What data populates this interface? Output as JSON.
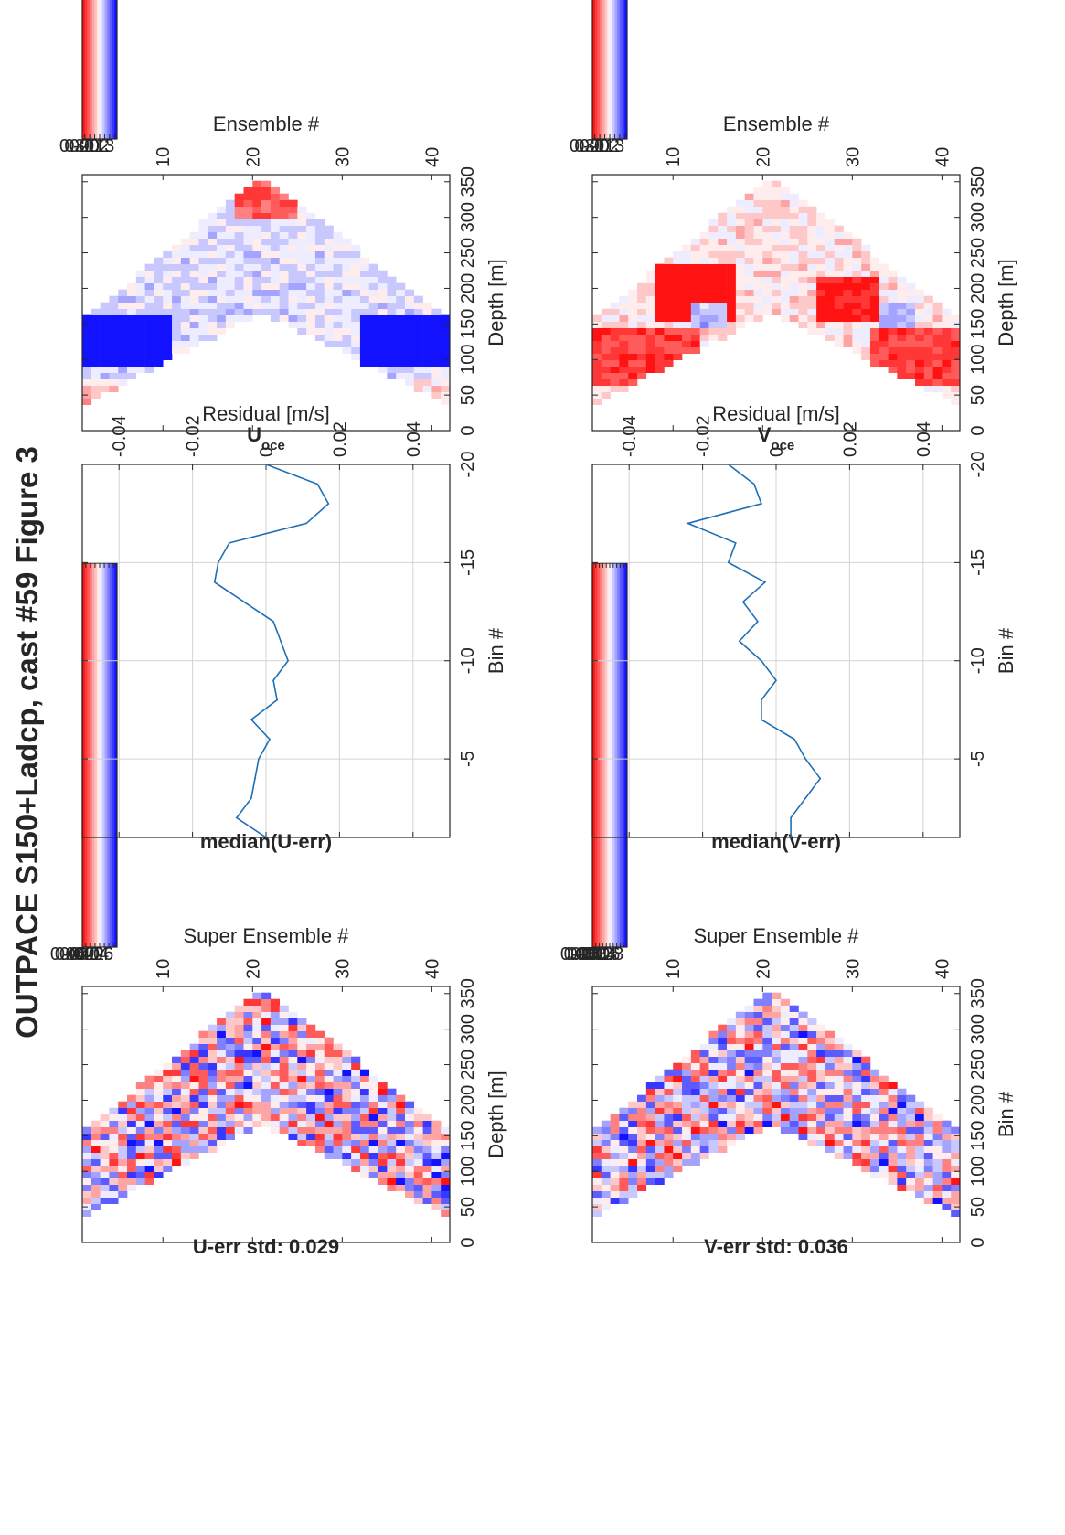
{
  "figure": {
    "title": "OUTPACE S150+Ladcp, cast #59  Figure 3"
  },
  "colors": {
    "positive": "#ff0000",
    "neutral": "#ffffff",
    "negative": "#0000ff",
    "line": "#1f6fb5",
    "frame": "#262626",
    "grid": "#d4d4d4"
  },
  "chart_data": [
    {
      "id": "u-err",
      "type": "heatmap",
      "title": "U-err std: 0.029",
      "xlabel": "Super Ensemble #",
      "ylabel": "Depth [m]",
      "xlim": [
        1,
        42
      ],
      "ylim": [
        0,
        360
      ],
      "x_ticks": [
        10,
        20,
        30,
        40
      ],
      "x_tick_labels": [
        "10",
        "20",
        "30",
        "40"
      ],
      "y_ticks": [
        0,
        50,
        100,
        150,
        200,
        250,
        300,
        350
      ],
      "y_tick_labels": [
        "0",
        "50",
        "100",
        "150",
        "200",
        "250",
        "300",
        "350"
      ],
      "colorbar": {
        "clim": [
          -0.075,
          0.075
        ],
        "ticks": [
          0.06,
          0.04,
          0.02,
          0,
          -0.02,
          -0.04,
          -0.06
        ],
        "tick_labels": [
          "0.06",
          "0.04",
          "0.02",
          "0",
          "-0.02",
          "-0.04",
          "-0.06"
        ]
      }
    },
    {
      "id": "v-err",
      "type": "heatmap",
      "title": "V-err std: 0.036",
      "xlabel": "Super Ensemble #",
      "ylabel": "Bin #",
      "xlim": [
        1,
        42
      ],
      "ylim": [
        0,
        360
      ],
      "x_ticks": [
        10,
        20,
        30,
        40
      ],
      "x_tick_labels": [
        "10",
        "20",
        "30",
        "40"
      ],
      "y_ticks": [
        0,
        50,
        100,
        150,
        200,
        250,
        300,
        350
      ],
      "y_tick_labels": [
        "0",
        "50",
        "100",
        "150",
        "200",
        "250",
        "300",
        "350"
      ],
      "colorbar": {
        "clim": [
          -0.1,
          0.1
        ],
        "ticks": [
          0.08,
          0.06,
          0.04,
          0.02,
          0,
          -0.02,
          -0.04,
          -0.06,
          -0.08
        ],
        "tick_labels": [
          "0.08",
          "0.06",
          "0.04",
          "0.02",
          "0",
          "-0.02",
          "-0.04",
          "-0.06",
          "-0.08"
        ]
      }
    },
    {
      "id": "median-u",
      "type": "line",
      "title": "median(U-err)",
      "xlabel": "Residual [m/s]",
      "ylabel": "Bin #",
      "xlim": [
        -0.05,
        0.05
      ],
      "ylim": [
        -20,
        -1
      ],
      "x_ticks": [
        -0.04,
        -0.02,
        0,
        0.02,
        0.04
      ],
      "x_tick_labels": [
        "-0.04",
        "-0.02",
        "0",
        "0.02",
        "0.04"
      ],
      "y_ticks": [
        -5,
        -10,
        -15,
        -20
      ],
      "y_tick_labels": [
        "-5",
        "-10",
        "-15",
        "-20"
      ],
      "grid": true,
      "series": [
        {
          "x": [
            0.0,
            -0.008,
            -0.004,
            -0.003,
            -0.002,
            0.001,
            -0.004,
            0.003,
            0.002,
            0.006,
            0.004,
            0.002,
            -0.006,
            -0.014,
            -0.013,
            -0.01,
            0.011,
            0.017,
            0.014,
            0.0
          ],
          "y": [
            -1,
            -2,
            -3,
            -4,
            -5,
            -6,
            -7,
            -8,
            -9,
            -10,
            -11,
            -12,
            -13,
            -14,
            -15,
            -16,
            -17,
            -18,
            -19,
            -20
          ]
        }
      ]
    },
    {
      "id": "median-v",
      "type": "line",
      "title": "median(V-err)",
      "xlabel": "Residual [m/s]",
      "ylabel": "Bin #",
      "xlim": [
        -0.05,
        0.05
      ],
      "ylim": [
        -20,
        -1
      ],
      "x_ticks": [
        -0.04,
        -0.02,
        0,
        0.02,
        0.04
      ],
      "x_tick_labels": [
        "-0.04",
        "-0.02",
        "0",
        "0.02",
        "0.04"
      ],
      "y_ticks": [
        -5,
        -10,
        -15,
        -20
      ],
      "y_tick_labels": [
        "-5",
        "-10",
        "-15",
        "-20"
      ],
      "grid": true,
      "series": [
        {
          "x": [
            0.004,
            0.004,
            0.008,
            0.012,
            0.008,
            0.005,
            -0.004,
            -0.004,
            0.0,
            -0.004,
            -0.01,
            -0.005,
            -0.009,
            -0.003,
            -0.013,
            -0.011,
            -0.024,
            -0.004,
            -0.006,
            -0.013
          ],
          "y": [
            -1,
            -2,
            -3,
            -4,
            -5,
            -6,
            -7,
            -8,
            -9,
            -10,
            -11,
            -12,
            -13,
            -14,
            -15,
            -16,
            -17,
            -18,
            -19,
            -20
          ]
        }
      ]
    },
    {
      "id": "u-oce",
      "type": "heatmap",
      "title": "U",
      "title_subscript": "oce",
      "xlabel": "Ensemble #",
      "ylabel": "Depth [m]",
      "xlim": [
        1,
        42
      ],
      "ylim": [
        0,
        360
      ],
      "x_ticks": [
        10,
        20,
        30,
        40
      ],
      "x_tick_labels": [
        "10",
        "20",
        "30",
        "40"
      ],
      "y_ticks": [
        0,
        50,
        100,
        150,
        200,
        250,
        300,
        350
      ],
      "y_tick_labels": [
        "0",
        "50",
        "100",
        "150",
        "200",
        "250",
        "300",
        "350"
      ],
      "colorbar": {
        "clim": [
          -0.35,
          0.35
        ],
        "ticks": [
          0.3,
          0.2,
          0.1,
          0,
          -0.1,
          -0.2,
          -0.3
        ],
        "tick_labels": [
          "0.3",
          "0.2",
          "0.1",
          "0",
          "-0.1",
          "-0.2",
          "-0.3"
        ]
      }
    },
    {
      "id": "v-oce",
      "type": "heatmap",
      "title": "V",
      "title_subscript": "oce",
      "xlabel": "Ensemble #",
      "ylabel": "Depth [m]",
      "xlim": [
        1,
        42
      ],
      "ylim": [
        0,
        360
      ],
      "x_ticks": [
        10,
        20,
        30,
        40
      ],
      "x_tick_labels": [
        "10",
        "20",
        "30",
        "40"
      ],
      "y_ticks": [
        0,
        50,
        100,
        150,
        200,
        250,
        300,
        350
      ],
      "y_tick_labels": [
        "0",
        "50",
        "100",
        "150",
        "200",
        "250",
        "300",
        "350"
      ],
      "colorbar": {
        "clim": [
          -0.35,
          0.35
        ],
        "ticks": [
          0.3,
          0.2,
          0.1,
          0,
          -0.1,
          -0.2,
          -0.3
        ],
        "tick_labels": [
          "0.3",
          "0.2",
          "0.1",
          "0",
          "-0.1",
          "-0.2",
          "-0.3"
        ]
      }
    }
  ]
}
